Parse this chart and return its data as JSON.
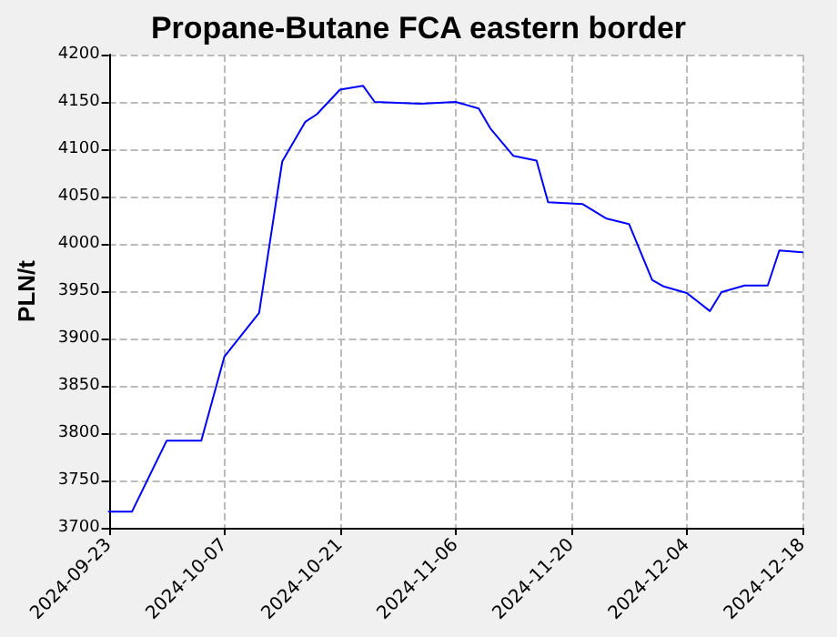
{
  "chart_data": {
    "type": "line",
    "title": "Propane-Butane FCA eastern border",
    "ylabel": "PLN/t",
    "categories": [
      "2024-09-23",
      null,
      null,
      null,
      null,
      null,
      null,
      null,
      null,
      null,
      "2024-10-07",
      null,
      null,
      null,
      null,
      null,
      null,
      null,
      null,
      null,
      "2024-10-21",
      null,
      null,
      null,
      null,
      null,
      null,
      null,
      null,
      null,
      "2024-11-06",
      null,
      null,
      null,
      null,
      null,
      null,
      null,
      null,
      null,
      "2024-11-20",
      null,
      null,
      null,
      null,
      null,
      null,
      null,
      null,
      null,
      "2024-12-04",
      null,
      null,
      null,
      null,
      null,
      null,
      null,
      null,
      null,
      "2024-12-18"
    ],
    "series": [
      {
        "color": "#0000ff",
        "values": [
          3717,
          null,
          3717,
          null,
          null,
          3792,
          null,
          null,
          3792,
          null,
          3881,
          null,
          null,
          3927,
          null,
          4087,
          null,
          4129,
          4137,
          null,
          4163,
          null,
          4167,
          4150,
          null,
          null,
          null,
          4148,
          null,
          null,
          4150,
          null,
          4143,
          4122,
          null,
          4093,
          null,
          4088,
          4044,
          null,
          null,
          4042,
          null,
          4027,
          null,
          4021,
          null,
          3962,
          3955,
          null,
          3948,
          null,
          3929,
          3949,
          null,
          3956,
          null,
          3956,
          3993,
          null,
          3991
        ]
      }
    ],
    "ylim": [
      3700,
      4200
    ],
    "yticks": [
      3700,
      3750,
      3800,
      3850,
      3900,
      3950,
      4000,
      4050,
      4100,
      4150,
      4200
    ],
    "grid": true,
    "marker": "none",
    "line_style": "solid"
  }
}
